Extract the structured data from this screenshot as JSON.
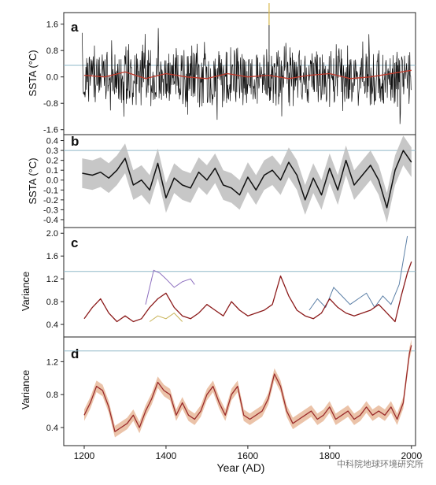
{
  "figure": {
    "xlabel": "Year (AD)",
    "xticks": [
      "1200",
      "1400",
      "1600",
      "1800",
      "2000"
    ],
    "watermark": "中科院地球环境研究所"
  },
  "chart_data": [
    {
      "panel": "a",
      "type": "line",
      "ylabel": "SSTA (°C)",
      "yticks": [
        "1.6",
        "0.8",
        "0.0",
        "-0.8",
        "-1.6"
      ],
      "ylim": [
        -1.75,
        1.95
      ],
      "xlim": [
        1150,
        2010
      ],
      "reference_line": 0.35,
      "series": [
        {
          "role": "annual",
          "color": "#111111",
          "x": [
            1200,
            1250,
            1300,
            1350,
            1400,
            1450,
            1500,
            1550,
            1600,
            1650,
            1700,
            1750,
            1800,
            1850,
            1900,
            1950,
            2000
          ],
          "y": [
            0.05,
            0.0,
            0.1,
            -0.05,
            0.05,
            0.0,
            -0.05,
            0.05,
            0.0,
            0.05,
            -0.05,
            0.0,
            0.05,
            -0.05,
            0.0,
            0.05,
            0.1
          ]
        },
        {
          "role": "smoothed",
          "color": "#c0392b",
          "x": [
            1200,
            1250,
            1300,
            1350,
            1400,
            1450,
            1500,
            1550,
            1600,
            1650,
            1700,
            1750,
            1800,
            1850,
            1900,
            1950,
            2000
          ],
          "y": [
            0.05,
            0.0,
            0.15,
            -0.05,
            0.1,
            0.0,
            -0.05,
            0.1,
            0.0,
            0.05,
            -0.05,
            0.05,
            0.1,
            -0.05,
            0.0,
            0.1,
            0.2
          ]
        }
      ]
    },
    {
      "panel": "b",
      "type": "area",
      "ylabel": "SSTA (°C)",
      "yticks": [
        "0.4",
        "0.3",
        "0.2",
        "0.1",
        "0.0",
        "-0.1",
        "-0.2",
        "-0.3",
        "-0.4"
      ],
      "ylim": [
        -0.48,
        0.46
      ],
      "xlim": [
        1150,
        2010
      ],
      "reference_line": 0.3,
      "series": [
        {
          "role": "mean",
          "color": "#111111",
          "x": [
            1195,
            1220,
            1240,
            1260,
            1280,
            1300,
            1320,
            1340,
            1360,
            1380,
            1400,
            1420,
            1440,
            1460,
            1480,
            1500,
            1520,
            1540,
            1560,
            1580,
            1600,
            1620,
            1640,
            1660,
            1680,
            1700,
            1720,
            1740,
            1760,
            1780,
            1800,
            1820,
            1840,
            1860,
            1880,
            1900,
            1920,
            1940,
            1960,
            1980,
            2000
          ],
          "y": [
            0.07,
            0.05,
            0.08,
            0.02,
            0.1,
            0.22,
            -0.05,
            0.0,
            -0.1,
            0.17,
            -0.18,
            0.02,
            -0.05,
            -0.08,
            0.08,
            0.0,
            0.12,
            -0.05,
            -0.08,
            -0.15,
            0.03,
            -0.1,
            0.05,
            0.1,
            0.0,
            0.18,
            0.05,
            -0.2,
            0.02,
            -0.15,
            0.12,
            -0.1,
            0.2,
            -0.05,
            0.05,
            0.15,
            0.0,
            -0.28,
            0.1,
            0.3,
            0.18
          ]
        },
        {
          "role": "uncertainty",
          "color": "#bdbdbd",
          "half_width": 0.15
        }
      ]
    },
    {
      "panel": "c",
      "type": "line",
      "ylabel": "Variance",
      "yticks": [
        "2.0",
        "1.6",
        "1.2",
        "0.8",
        "0.4"
      ],
      "ylim": [
        0.18,
        2.1
      ],
      "xlim": [
        1150,
        2010
      ],
      "reference_line": 1.33,
      "series": [
        {
          "role": "composite",
          "color": "#8b1a1a",
          "x": [
            1200,
            1220,
            1240,
            1260,
            1280,
            1300,
            1320,
            1340,
            1360,
            1380,
            1400,
            1420,
            1440,
            1460,
            1480,
            1500,
            1520,
            1540,
            1560,
            1580,
            1600,
            1620,
            1640,
            1660,
            1680,
            1700,
            1720,
            1740,
            1760,
            1780,
            1800,
            1820,
            1840,
            1860,
            1880,
            1900,
            1920,
            1940,
            1960,
            1975,
            1990,
            2000
          ],
          "y": [
            0.5,
            0.7,
            0.85,
            0.6,
            0.45,
            0.55,
            0.45,
            0.5,
            0.7,
            0.85,
            0.95,
            0.7,
            0.55,
            0.5,
            0.6,
            0.75,
            0.65,
            0.55,
            0.8,
            0.65,
            0.55,
            0.6,
            0.65,
            0.75,
            1.25,
            0.9,
            0.65,
            0.55,
            0.5,
            0.6,
            0.85,
            0.7,
            0.6,
            0.55,
            0.6,
            0.65,
            0.75,
            0.6,
            0.45,
            0.9,
            1.3,
            1.5
          ]
        },
        {
          "role": "member",
          "color": "#8d6fbf",
          "x": [
            1350,
            1370,
            1385,
            1400,
            1420,
            1440,
            1460,
            1470
          ],
          "y": [
            0.75,
            1.35,
            1.3,
            1.2,
            1.05,
            1.15,
            1.2,
            1.1
          ]
        },
        {
          "role": "member",
          "color": "#5b7fa6",
          "x": [
            1750,
            1770,
            1790,
            1810,
            1830,
            1850,
            1870,
            1890,
            1910,
            1930,
            1950,
            1970,
            1990
          ],
          "y": [
            0.65,
            0.85,
            0.7,
            1.05,
            0.9,
            0.75,
            0.85,
            0.95,
            0.7,
            0.9,
            0.75,
            1.1,
            1.95
          ]
        },
        {
          "role": "member",
          "color": "#c9b458",
          "x": [
            1360,
            1380,
            1400,
            1420,
            1440
          ],
          "y": [
            0.45,
            0.55,
            0.5,
            0.6,
            0.45
          ]
        }
      ]
    },
    {
      "panel": "d",
      "type": "area",
      "ylabel": "Variance",
      "yticks": [
        "1.2",
        "0.8",
        "0.4"
      ],
      "ylim": [
        0.18,
        1.5
      ],
      "xlim": [
        1150,
        2010
      ],
      "reference_line": 1.33,
      "series": [
        {
          "role": "mean",
          "color": "#9b2c2c",
          "x": [
            1200,
            1215,
            1230,
            1245,
            1260,
            1275,
            1290,
            1305,
            1320,
            1335,
            1350,
            1365,
            1380,
            1395,
            1410,
            1425,
            1440,
            1455,
            1470,
            1485,
            1500,
            1515,
            1530,
            1545,
            1560,
            1575,
            1590,
            1605,
            1620,
            1635,
            1650,
            1665,
            1680,
            1695,
            1710,
            1725,
            1740,
            1755,
            1770,
            1785,
            1800,
            1815,
            1830,
            1845,
            1860,
            1875,
            1890,
            1905,
            1920,
            1935,
            1950,
            1965,
            1980,
            1995,
            2000
          ],
          "y": [
            0.55,
            0.7,
            0.9,
            0.85,
            0.65,
            0.35,
            0.4,
            0.45,
            0.55,
            0.4,
            0.6,
            0.75,
            0.95,
            0.85,
            0.8,
            0.55,
            0.7,
            0.55,
            0.5,
            0.6,
            0.8,
            0.9,
            0.7,
            0.55,
            0.8,
            0.9,
            0.55,
            0.5,
            0.55,
            0.6,
            0.75,
            1.05,
            0.9,
            0.6,
            0.45,
            0.5,
            0.55,
            0.6,
            0.5,
            0.55,
            0.65,
            0.5,
            0.55,
            0.6,
            0.5,
            0.55,
            0.65,
            0.55,
            0.6,
            0.55,
            0.65,
            0.5,
            0.7,
            1.3,
            1.4
          ]
        },
        {
          "role": "uncertainty",
          "color": "#e8b89a",
          "half_width": 0.07
        }
      ]
    }
  ]
}
